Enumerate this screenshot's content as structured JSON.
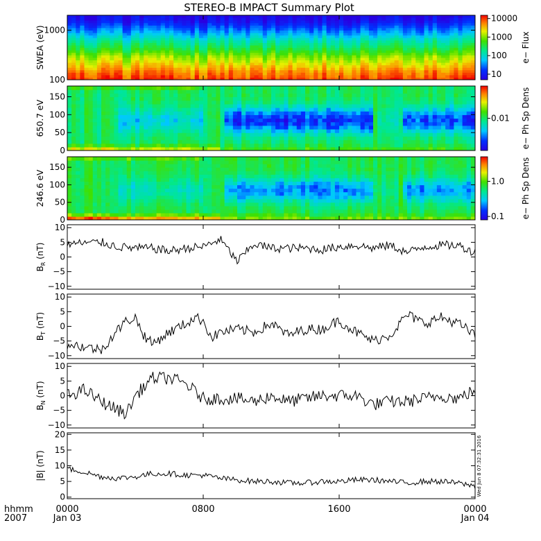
{
  "title": "STEREO-B IMPACT Summary Plot",
  "chart_data": [
    {
      "type": "heatmap",
      "id": "swea",
      "ylabel": "SWEA (eV)",
      "yscale": "log",
      "ylim": [
        100,
        2000
      ],
      "yticks": [
        {
          "v": 1000,
          "label": "1000"
        },
        {
          "v": 100,
          "label": "100"
        }
      ],
      "colorbar": {
        "label": "e− Flux",
        "scale": "log",
        "range": [
          5,
          15000
        ],
        "ticks": [
          {
            "v": 10000,
            "label": "10000"
          },
          {
            "v": 1000,
            "label": "1000"
          },
          {
            "v": 100,
            "label": "100"
          },
          {
            "v": 10,
            "label": "10"
          }
        ]
      },
      "energy_profile": [
        {
          "e": 100,
          "flux": 10000
        },
        {
          "e": 150,
          "flux": 5000
        },
        {
          "e": 200,
          "flux": 2500
        },
        {
          "e": 300,
          "flux": 1000
        },
        {
          "e": 400,
          "flux": 400
        },
        {
          "e": 600,
          "flux": 150
        },
        {
          "e": 800,
          "flux": 60
        },
        {
          "e": 1000,
          "flux": 30
        },
        {
          "e": 1300,
          "flux": 14
        },
        {
          "e": 1600,
          "flux": 8
        },
        {
          "e": 2000,
          "flux": 6
        }
      ]
    },
    {
      "type": "heatmap",
      "id": "pad650",
      "ylabel": "650.7 eV",
      "ylim": [
        0,
        180
      ],
      "yticks": [
        {
          "v": 0,
          "label": "0"
        },
        {
          "v": 50,
          "label": "50"
        },
        {
          "v": 100,
          "label": "100"
        },
        {
          "v": 150,
          "label": "150"
        }
      ],
      "colorbar": {
        "label": "e− Ph Sp Dens",
        "scale": "log",
        "range": [
          0.0005,
          0.2
        ],
        "ticks": [
          {
            "v": 0.01,
            "label": "0.01"
          }
        ]
      }
    },
    {
      "type": "heatmap",
      "id": "pad246",
      "ylabel": "246.6 eV",
      "ylim": [
        0,
        180
      ],
      "yticks": [
        {
          "v": 0,
          "label": "0"
        },
        {
          "v": 50,
          "label": "50"
        },
        {
          "v": 100,
          "label": "100"
        },
        {
          "v": 150,
          "label": "150"
        }
      ],
      "colorbar": {
        "label": "e− Ph Sp Dens",
        "scale": "log",
        "range": [
          0.08,
          5
        ],
        "ticks": [
          {
            "v": 1.0,
            "label": "1.0"
          },
          {
            "v": 0.1,
            "label": "0.1"
          }
        ]
      }
    },
    {
      "type": "line",
      "id": "br",
      "ylabel": "B",
      "ysub": "R",
      "yunit": "(nT)",
      "ylim": [
        -11,
        11
      ],
      "yticks": [
        {
          "v": 10,
          "label": "10"
        },
        {
          "v": 5,
          "label": "5"
        },
        {
          "v": 0,
          "label": "0"
        },
        {
          "v": -5,
          "label": "−5"
        },
        {
          "v": -10,
          "label": "−10"
        }
      ],
      "x": [
        0,
        2,
        3,
        4,
        5,
        6,
        7,
        8,
        9,
        10,
        11,
        12,
        13,
        14,
        15,
        16,
        17,
        18,
        19,
        20,
        21,
        22,
        23,
        24
      ],
      "values": [
        4.5,
        5,
        3.5,
        3,
        3,
        2,
        3,
        3.5,
        6,
        -1.5,
        4.5,
        3,
        3,
        3,
        2.5,
        3.5,
        4,
        3,
        4,
        1.5,
        3.5,
        4,
        4,
        1.5
      ],
      "noise": 1.5
    },
    {
      "type": "line",
      "id": "bt",
      "ylabel": "B",
      "ysub": "T",
      "yunit": "(nT)",
      "ylim": [
        -11,
        11
      ],
      "yticks": [
        {
          "v": 10,
          "label": "10"
        },
        {
          "v": 5,
          "label": "5"
        },
        {
          "v": 0,
          "label": "0"
        },
        {
          "v": -5,
          "label": "−5"
        },
        {
          "v": -10,
          "label": "−10"
        }
      ],
      "x": [
        0,
        1,
        2,
        3,
        3.5,
        4,
        4.5,
        5,
        6,
        7,
        7.5,
        8,
        8.5,
        9,
        10,
        11,
        12,
        13,
        14,
        15,
        16,
        17,
        18,
        19,
        20,
        21,
        22,
        23,
        24
      ],
      "values": [
        -6,
        -7,
        -8,
        -1,
        2,
        3,
        -3,
        -6,
        -2,
        1,
        3,
        2,
        -4,
        -2,
        -1,
        -2,
        1,
        -3,
        -1,
        -1,
        2,
        -2,
        -5,
        -3,
        4,
        1,
        3,
        1,
        -3
      ],
      "noise": 1.8
    },
    {
      "type": "line",
      "id": "bn",
      "ylabel": "B",
      "ysub": "N",
      "yunit": "(nT)",
      "ylim": [
        -11,
        11
      ],
      "yticks": [
        {
          "v": 10,
          "label": "10"
        },
        {
          "v": 5,
          "label": "5"
        },
        {
          "v": 0,
          "label": "0"
        },
        {
          "v": -5,
          "label": "−5"
        },
        {
          "v": -10,
          "label": "−10"
        }
      ],
      "x": [
        0,
        1,
        2,
        3,
        3.5,
        4,
        5,
        6,
        7,
        8,
        9,
        10,
        11,
        12,
        13,
        14,
        15,
        16,
        17,
        18,
        19,
        20,
        21,
        22,
        23,
        24
      ],
      "values": [
        0,
        2,
        -2,
        -5,
        -6,
        0,
        6,
        6,
        4,
        -1,
        -1,
        -1,
        -2,
        0,
        -2,
        -1,
        0,
        0,
        0,
        -3,
        -2,
        -2,
        -1,
        0,
        -1,
        2
      ],
      "noise": 2.2
    },
    {
      "type": "line",
      "id": "bmag",
      "ylabel": "|B|",
      "yunit": "(nT)",
      "ylim": [
        -0.5,
        20.5
      ],
      "yticks": [
        {
          "v": 20,
          "label": "20"
        },
        {
          "v": 15,
          "label": "15"
        },
        {
          "v": 10,
          "label": "10"
        },
        {
          "v": 5,
          "label": "5"
        },
        {
          "v": 0,
          "label": "0"
        }
      ],
      "x": [
        0,
        1,
        2,
        3,
        4,
        5,
        6,
        7,
        8,
        9,
        10,
        11,
        12,
        13,
        14,
        15,
        16,
        17,
        18,
        19,
        20,
        21,
        22,
        23,
        24
      ],
      "values": [
        9,
        8,
        6.5,
        6,
        6.5,
        7.5,
        7.5,
        7,
        7,
        6,
        5.5,
        5,
        5,
        4.5,
        4.5,
        5,
        5,
        5.5,
        5.5,
        5,
        4.5,
        5,
        5,
        4.5,
        3.5
      ],
      "noise": 0.9
    }
  ],
  "x_axis": {
    "ticks": [
      {
        "v": 0,
        "label": "0000",
        "date": "Jan 03"
      },
      {
        "v": 8,
        "label": "0800",
        "date": ""
      },
      {
        "v": 16,
        "label": "1600",
        "date": ""
      },
      {
        "v": 24,
        "label": "0000",
        "date": "Jan 04"
      }
    ],
    "unit_label": "hhmm",
    "year_label": "2007",
    "xlim": [
      0,
      24
    ]
  },
  "timestamp": "Wed Jun  8 07:32:31 2016"
}
